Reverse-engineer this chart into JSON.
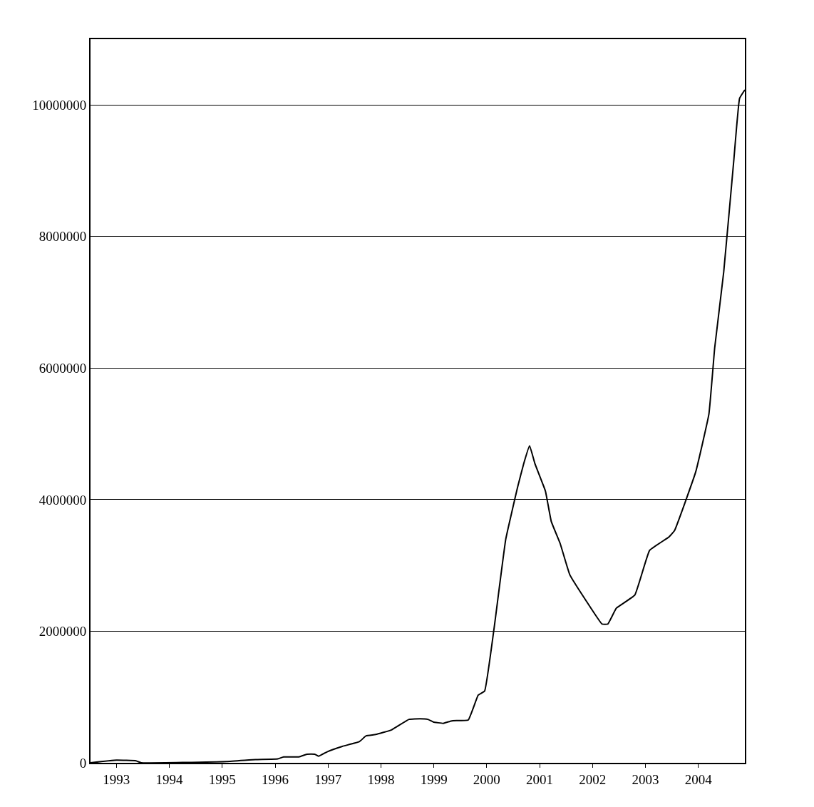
{
  "chart_data": {
    "type": "line",
    "x": [
      1992.51,
      1993.0,
      1993.37,
      1993.47,
      1995.08,
      1995.63,
      1996.05,
      1996.16,
      1996.45,
      1996.6,
      1996.75,
      1996.82,
      1996.99,
      1997.27,
      1997.59,
      1997.72,
      1997.9,
      1998.2,
      1998.53,
      1998.74,
      1998.89,
      1998.99,
      1999.18,
      1999.26,
      1999.36,
      1999.65,
      1999.84,
      1999.96,
      2000.14,
      2000.36,
      2000.59,
      2000.7,
      2000.81,
      2000.91,
      2001.11,
      2001.22,
      2001.39,
      2001.57,
      2001.89,
      2002.18,
      2002.29,
      2002.45,
      2002.8,
      2003.08,
      2003.44,
      2003.55,
      2003.95,
      2004.2,
      2004.31,
      2004.48,
      2004.67,
      2004.78,
      2004.88
    ],
    "series": [
      {
        "color": "#000000",
        "values": [
          0,
          40000,
          30000,
          0,
          20000,
          50000,
          60000,
          90000,
          90000,
          130000,
          130000,
          100000,
          170000,
          250000,
          320000,
          410000,
          430000,
          500000,
          660000,
          670000,
          660000,
          620000,
          600000,
          620000,
          640000,
          650000,
          1030000,
          1090000,
          2050000,
          3400000,
          4210000,
          4550000,
          4820000,
          4550000,
          4130000,
          3670000,
          3330000,
          2860000,
          2450000,
          2110000,
          2110000,
          2350000,
          2550000,
          3230000,
          3430000,
          3530000,
          4420000,
          5300000,
          6310000,
          7460000,
          9150000,
          10100000,
          10230000
        ]
      }
    ],
    "xlim": [
      1992.51,
      2004.88
    ],
    "xticks": [
      1993,
      1994,
      1995,
      1996,
      1997,
      1998,
      1999,
      2000,
      2001,
      2002,
      2003,
      2004
    ],
    "ylim": [
      0,
      11000000
    ],
    "yticks": [
      0,
      2000000,
      4000000,
      6000000,
      8000000,
      10000000
    ],
    "grid": "y",
    "legend": false,
    "marker": "none",
    "line_style": "solid"
  }
}
